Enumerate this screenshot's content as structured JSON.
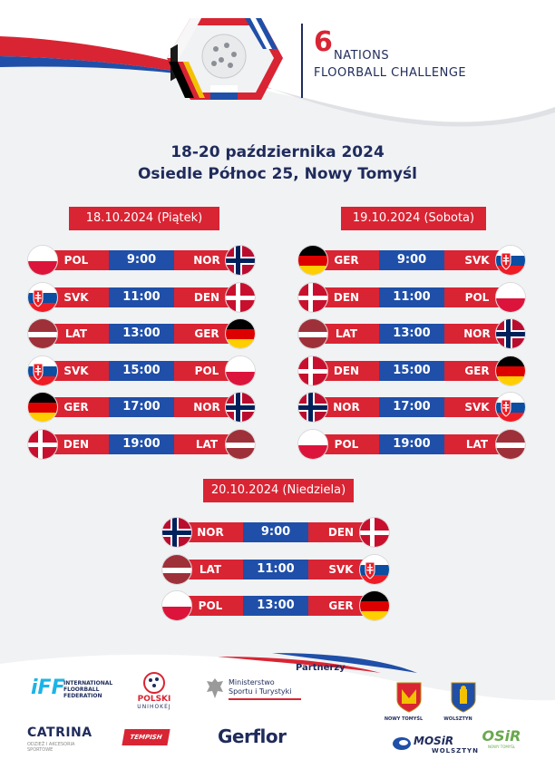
{
  "header": {
    "title_number": "6",
    "title_line1": "NATIONS",
    "title_line2": "FLOORBALL CHALLENGE"
  },
  "event": {
    "dates": "18-20 października 2024",
    "venue": "Osiedle Północ 25, Nowy Tomyśl"
  },
  "days": [
    {
      "label": "18.10.2024 (Piątek)",
      "matches": [
        {
          "home": "POL",
          "time": "9:00",
          "away": "NOR"
        },
        {
          "home": "SVK",
          "time": "11:00",
          "away": "DEN"
        },
        {
          "home": "LAT",
          "time": "13:00",
          "away": "GER"
        },
        {
          "home": "SVK",
          "time": "15:00",
          "away": "POL"
        },
        {
          "home": "GER",
          "time": "17:00",
          "away": "NOR"
        },
        {
          "home": "DEN",
          "time": "19:00",
          "away": "LAT"
        }
      ]
    },
    {
      "label": "19.10.2024 (Sobota)",
      "matches": [
        {
          "home": "GER",
          "time": "9:00",
          "away": "SVK"
        },
        {
          "home": "DEN",
          "time": "11:00",
          "away": "POL"
        },
        {
          "home": "LAT",
          "time": "13:00",
          "away": "NOR"
        },
        {
          "home": "DEN",
          "time": "15:00",
          "away": "GER"
        },
        {
          "home": "NOR",
          "time": "17:00",
          "away": "SVK"
        },
        {
          "home": "POL",
          "time": "19:00",
          "away": "LAT"
        }
      ]
    },
    {
      "label": "20.10.2024 (Niedziela)",
      "matches": [
        {
          "home": "NOR",
          "time": "9:00",
          "away": "DEN"
        },
        {
          "home": "LAT",
          "time": "11:00",
          "away": "SVK"
        },
        {
          "home": "POL",
          "time": "13:00",
          "away": "GER"
        }
      ]
    }
  ],
  "partners": {
    "label": "Partnerzy",
    "iff_mark": "iFF",
    "iff_text_1": "INTERNATIONAL",
    "iff_text_2": "FLOORBALL",
    "iff_text_3": "FEDERATION",
    "unihokej_1": "POLSKI",
    "unihokej_2": "UNIHOKEJ",
    "ministry_1": "Ministerstwo",
    "ministry_2": "Sportu i Turystyki",
    "catrina": "CATRINA",
    "catrina_sub": "ODZIEŻ I AKCESORIA SPORTOWE",
    "tempish": "TEMPISH",
    "gerflor": "Gerflor",
    "nowy_tomysl": "NOWY TOMYŚL",
    "wolsztyn": "WOLSZTYN",
    "mosir": "MOSiR",
    "mosir_sub": "WOLSZTYN",
    "osir": "OSiR",
    "osir_sub": "NOWY TOMYŚL"
  },
  "colors": {
    "accent_red": "#d92433",
    "accent_blue": "#1f4fa8",
    "navy": "#1f2b5b"
  }
}
